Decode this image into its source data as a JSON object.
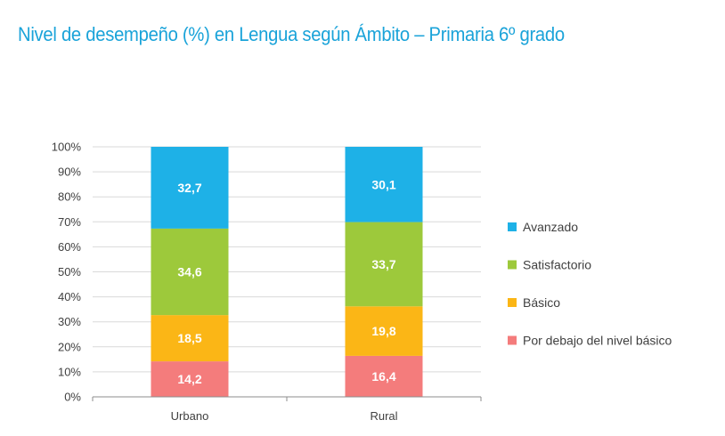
{
  "page": {
    "title": "Nivel de desempeño (%) en Lengua según Ámbito – Primaria 6º grado"
  },
  "chart_data": {
    "type": "bar",
    "stacked": true,
    "title": "Nivel de desempeño (%) en Lengua según Ámbito – Primaria 6º grado",
    "xlabel": "",
    "ylabel": "",
    "ylim": [
      0,
      100
    ],
    "ytick_labels": [
      "0%",
      "10%",
      "20%",
      "30%",
      "40%",
      "50%",
      "60%",
      "70%",
      "80%",
      "90%",
      "100%"
    ],
    "categories": [
      "Urbano",
      "Rural"
    ],
    "grid": true,
    "legend_position": "right",
    "series": [
      {
        "name": "Por debajo del nivel básico",
        "values": [
          14.2,
          16.4
        ],
        "labels": [
          "14,2",
          "16,4"
        ],
        "color": "#f47c7c"
      },
      {
        "name": "Básico",
        "values": [
          18.5,
          19.8
        ],
        "labels": [
          "18,5",
          "19,8"
        ],
        "color": "#fbb616"
      },
      {
        "name": "Satisfactorio",
        "values": [
          34.6,
          33.7
        ],
        "labels": [
          "34,6",
          "33,7"
        ],
        "color": "#9dc93b"
      },
      {
        "name": "Avanzado",
        "values": [
          32.7,
          30.1
        ],
        "labels": [
          "32,7",
          "30,1"
        ],
        "color": "#1eb1e7"
      }
    ],
    "legend_order": [
      "Avanzado",
      "Satisfactorio",
      "Básico",
      "Por debajo del nivel básico"
    ]
  }
}
